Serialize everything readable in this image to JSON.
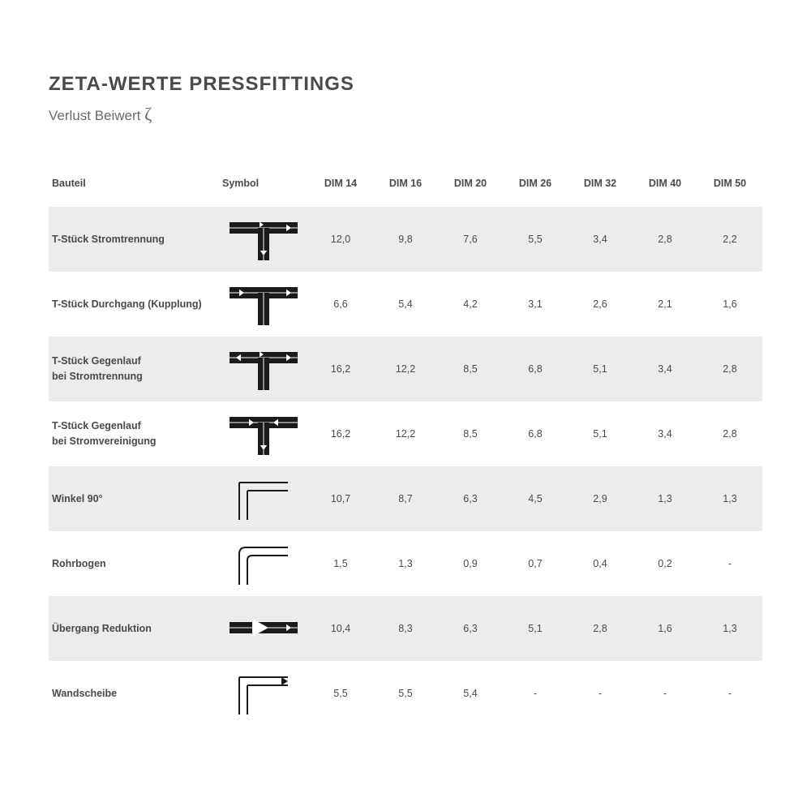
{
  "title": "ZETA-WERTE PRESSFITTINGS",
  "subtitle_prefix": "Verlust Beiwert ",
  "subtitle_symbol": "ζ",
  "colors": {
    "stripe": "#ececec",
    "text": "#4a4a4a",
    "symbol_stroke": "#1a1a1a"
  },
  "columns": [
    "Bauteil",
    "Symbol",
    "DIM 14",
    "DIM 16",
    "DIM 20",
    "DIM 26",
    "DIM 32",
    "DIM 40",
    "DIM 50"
  ],
  "rows": [
    {
      "label": "T-Stück Stromtrennung",
      "symbol": "tee_split",
      "vals": [
        "12,0",
        "9,8",
        "7,6",
        "5,5",
        "3,4",
        "2,8",
        "2,2"
      ]
    },
    {
      "label": "T-Stück Durchgang (Kupplung)",
      "symbol": "tee_through",
      "vals": [
        "6,6",
        "5,4",
        "4,2",
        "3,1",
        "2,6",
        "2,1",
        "1,6"
      ]
    },
    {
      "label": "T-Stück Gegenlauf\nbei Stromtrennung",
      "symbol": "tee_counter_sep",
      "vals": [
        "16,2",
        "12,2",
        "8,5",
        "6,8",
        "5,1",
        "3,4",
        "2,8"
      ]
    },
    {
      "label": "T-Stück Gegenlauf\nbei Stromvereinigung",
      "symbol": "tee_counter_merge",
      "vals": [
        "16,2",
        "12,2",
        "8,5",
        "6,8",
        "5,1",
        "3,4",
        "2,8"
      ]
    },
    {
      "label": "Winkel 90°",
      "symbol": "elbow90",
      "vals": [
        "10,7",
        "8,7",
        "6,3",
        "4,5",
        "2,9",
        "1,3",
        "1,3"
      ]
    },
    {
      "label": "Rohrbogen",
      "symbol": "bend",
      "vals": [
        "1,5",
        "1,3",
        "0,9",
        "0,7",
        "0,4",
        "0,2",
        "-"
      ]
    },
    {
      "label": "Übergang Reduktion",
      "symbol": "reducer",
      "vals": [
        "10,4",
        "8,3",
        "6,3",
        "5,1",
        "2,8",
        "1,6",
        "1,3"
      ]
    },
    {
      "label": "Wandscheibe",
      "symbol": "wallplate",
      "vals": [
        "5,5",
        "5,5",
        "5,4",
        "-",
        "-",
        "-",
        "-"
      ]
    }
  ]
}
